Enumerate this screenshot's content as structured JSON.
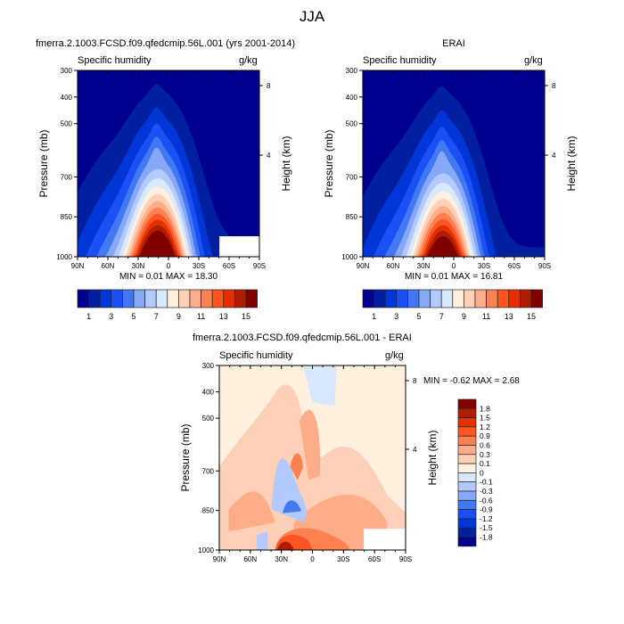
{
  "main_title": "JJA",
  "panels": [
    {
      "title": "fmerra.2.1003.FCSD.f09.qfedcmip.56L.001 (yrs 2001-2014)",
      "left_label": "Specific humidity",
      "right_label": "g/kg",
      "stats": "MIN =  0.01  MAX =  18.30"
    },
    {
      "title": "ERAI",
      "left_label": "Specific humidity",
      "right_label": "g/kg",
      "stats": "MIN =  0.01  MAX =  16.81"
    },
    {
      "title": "fmerra.2.1003.FCSD.f09.qfedcmip.56L.001 - ERAI",
      "left_label": "Specific humidity",
      "right_label": "g/kg",
      "stats": "MIN = -0.62  MAX =   2.68"
    }
  ],
  "axes": {
    "ylabel": "Pressure (mb)",
    "ylabel_right": "Height (km)",
    "pressure_ticks": [
      "300",
      "400",
      "500",
      "700",
      "850",
      "1000"
    ],
    "height_ticks": [
      "8",
      "4"
    ],
    "lat_ticks": [
      "90N",
      "60N",
      "30N",
      "0",
      "30S",
      "60S",
      "90S"
    ]
  },
  "colorbar_top": {
    "labels": [
      "1",
      "3",
      "5",
      "7",
      "9",
      "11",
      "13",
      "15"
    ],
    "colors": [
      "#00008f",
      "#0020a0",
      "#0036d8",
      "#1a50f5",
      "#4278f2",
      "#86a8f6",
      "#b4caff",
      "#d8e8ff",
      "#fff0e0",
      "#ffd0b8",
      "#ffac88",
      "#ff8050",
      "#ff5524",
      "#e03200",
      "#b01c00",
      "#800000"
    ]
  },
  "colorbar_diff": {
    "labels": [
      "1.8",
      "1.5",
      "1.2",
      "0.9",
      "0.6",
      "0.3",
      "0.1",
      "0",
      "-0.1",
      "-0.3",
      "-0.6",
      "-0.9",
      "-1.2",
      "-1.5",
      "-1.8"
    ],
    "colors": [
      "#800000",
      "#b01c00",
      "#e03200",
      "#ff5524",
      "#ff8050",
      "#ffac88",
      "#ffd0b8",
      "#fff0e0",
      "#d8e8ff",
      "#b4caff",
      "#86a8f6",
      "#4278f2",
      "#1a50f5",
      "#0036d8",
      "#0020a0",
      "#00008f"
    ]
  },
  "chart_data": [
    {
      "type": "heatmap",
      "title": "fmerra.2.1003.FCSD.f09.qfedcmip.56L.001 (yrs 2001-2014)",
      "variable": "Specific humidity",
      "units": "g/kg",
      "xlabel": "",
      "ylabel": "Pressure (mb)",
      "ylabel_right": "Height (km)",
      "x_range": [
        "90N",
        "90S"
      ],
      "ylim": [
        1000,
        300
      ],
      "contour_levels": [
        1,
        2,
        3,
        4,
        5,
        6,
        7,
        8,
        9,
        10,
        11,
        12,
        13,
        14,
        15
      ],
      "min": 0.01,
      "max": 18.3
    },
    {
      "type": "heatmap",
      "title": "ERAI",
      "variable": "Specific humidity",
      "units": "g/kg",
      "ylabel": "Pressure (mb)",
      "ylabel_right": "Height (km)",
      "x_range": [
        "90N",
        "90S"
      ],
      "ylim": [
        1000,
        300
      ],
      "contour_levels": [
        1,
        2,
        3,
        4,
        5,
        6,
        7,
        8,
        9,
        10,
        11,
        12,
        13,
        14,
        15
      ],
      "min": 0.01,
      "max": 16.81
    },
    {
      "type": "heatmap",
      "title": "fmerra.2.1003.FCSD.f09.qfedcmip.56L.001 - ERAI",
      "variable": "Specific humidity",
      "units": "g/kg",
      "ylabel": "Pressure (mb)",
      "ylabel_right": "Height (km)",
      "x_range": [
        "90N",
        "90S"
      ],
      "ylim": [
        1000,
        300
      ],
      "contour_levels": [
        -1.8,
        -1.5,
        -1.2,
        -0.9,
        -0.6,
        -0.3,
        -0.1,
        0,
        0.1,
        0.3,
        0.6,
        0.9,
        1.2,
        1.5,
        1.8
      ],
      "min": -0.62,
      "max": 2.68
    }
  ]
}
